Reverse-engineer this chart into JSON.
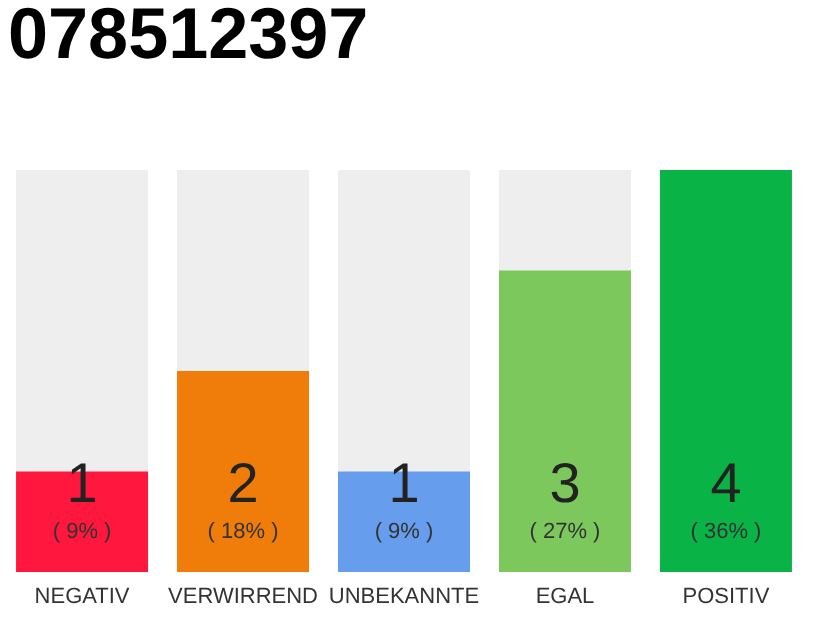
{
  "chart_data": {
    "type": "bar",
    "title": "078512397",
    "categories": [
      "NEGATIV",
      "VERWIRREND",
      "UNBEKANNTE",
      "EGAL",
      "POSITIV"
    ],
    "values": [
      1,
      2,
      1,
      3,
      4
    ],
    "colors": [
      "#ff173d",
      "#f07d0a",
      "#679ded",
      "#7dc85d",
      "#0ab345"
    ],
    "ylim": [
      0,
      4
    ],
    "tick_labels": "x",
    "data_labels": true,
    "annotations": [
      "( 9% )",
      "( 18% )",
      "( 9% )",
      "( 27% )",
      "( 36% )"
    ]
  }
}
